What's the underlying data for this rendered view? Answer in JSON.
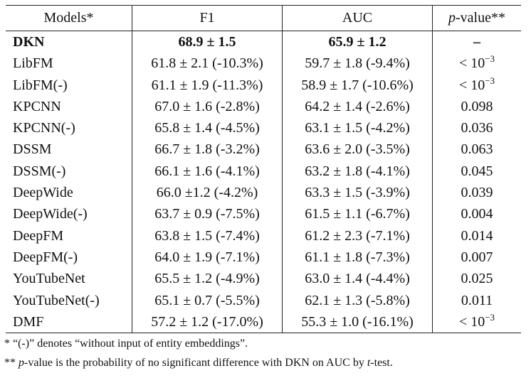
{
  "headers": {
    "models": "Models*",
    "f1": "F1",
    "auc": "AUC",
    "pvalue_italic": "p",
    "pvalue_rest": "-value**"
  },
  "rows": [
    {
      "model": "DKN",
      "f1": "68.9 ± 1.5",
      "auc": "65.9 ± 1.2",
      "pvalue": "–"
    },
    {
      "model": "LibFM",
      "f1": "61.8 ± 2.1 (-10.3%)",
      "auc": "59.7 ± 1.8 (-9.4%)",
      "pvalue": "< 10",
      "pvalue_exp": "−3"
    },
    {
      "model": "LibFM(-)",
      "f1": "61.1 ± 1.9 (-11.3%)",
      "auc": "58.9 ± 1.7 (-10.6%)",
      "pvalue": "< 10",
      "pvalue_exp": "−3"
    },
    {
      "model": "KPCNN",
      "f1": "67.0 ± 1.6 (-2.8%)",
      "auc": "64.2 ± 1.4 (-2.6%)",
      "pvalue": "0.098"
    },
    {
      "model": "KPCNN(-)",
      "f1": "65.8 ± 1.4 (-4.5%)",
      "auc": "63.1 ± 1.5 (-4.2%)",
      "pvalue": "0.036"
    },
    {
      "model": "DSSM",
      "f1": "66.7 ± 1.8 (-3.2%)",
      "auc": "63.6 ± 2.0 (-3.5%)",
      "pvalue": "0.063"
    },
    {
      "model": "DSSM(-)",
      "f1": "66.1 ± 1.6 (-4.1%)",
      "auc": "63.2 ± 1.8 (-4.1%)",
      "pvalue": "0.045"
    },
    {
      "model": "DeepWide",
      "f1": "66.0 ±1.2 (-4.2%)",
      "auc": "63.3 ± 1.5 (-3.9%)",
      "pvalue": "0.039"
    },
    {
      "model": "DeepWide(-)",
      "f1": "63.7 ± 0.9 (-7.5%)",
      "auc": "61.5 ± 1.1 (-6.7%)",
      "pvalue": "0.004"
    },
    {
      "model": "DeepFM",
      "f1": "63.8 ± 1.5 (-7.4%)",
      "auc": "61.2 ± 2.3 (-7.1%)",
      "pvalue": "0.014"
    },
    {
      "model": "DeepFM(-)",
      "f1": "64.0 ± 1.9 (-7.1%)",
      "auc": "61.1 ± 1.8 (-7.3%)",
      "pvalue": "0.007"
    },
    {
      "model": "YouTubeNet",
      "f1": "65.5 ± 1.2 (-4.9%)",
      "auc": "63.0 ± 1.4 (-4.4%)",
      "pvalue": "0.025"
    },
    {
      "model": "YouTubeNet(-)",
      "f1": "65.1 ± 0.7 (-5.5%)",
      "auc": "62.1 ± 1.3 (-5.8%)",
      "pvalue": "0.011"
    },
    {
      "model": "DMF",
      "f1": "57.2 ± 1.2 (-17.0%)",
      "auc": "55.3 ± 1.0 (-16.1%)",
      "pvalue": "< 10",
      "pvalue_exp": "−3"
    }
  ],
  "notes": {
    "note1": "* “(-)” denotes “without input of entity embeddings”.",
    "note2_prefix": "** ",
    "note2_italic_p": "p",
    "note2_mid": "-value is the probability of no significant difference with DKN on AUC by ",
    "note2_italic_t": "t",
    "note2_end": "-test."
  }
}
